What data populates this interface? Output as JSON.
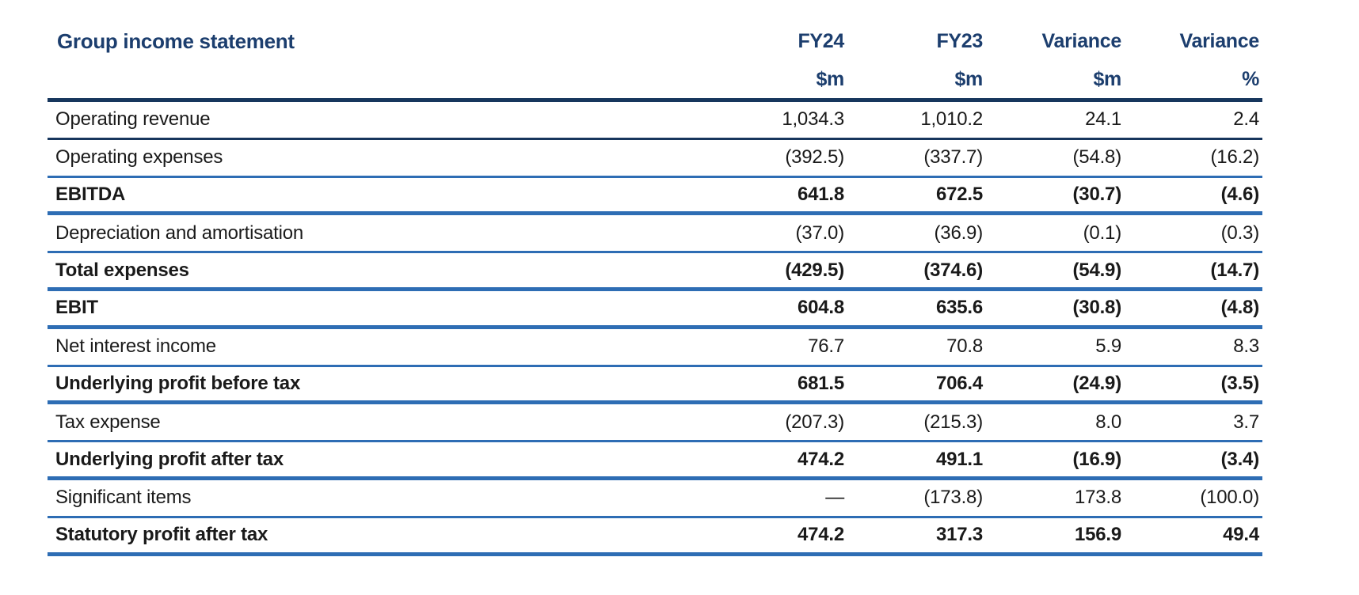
{
  "colors": {
    "navy_rule": "#17365d",
    "blue_rule": "#2e6db4",
    "header_text": "#1c3e6e",
    "body_text": "#1a1a1a"
  },
  "table": {
    "title": "Group income statement",
    "columns": [
      {
        "line1": "FY24",
        "line2": "$m"
      },
      {
        "line1": "FY23",
        "line2": "$m"
      },
      {
        "line1": "Variance",
        "line2": "$m"
      },
      {
        "line1": "Variance",
        "line2": "%"
      }
    ],
    "rows": [
      {
        "label": "Operating revenue",
        "bold": false,
        "values": [
          "1,034.3",
          "1,010.2",
          "24.1",
          "2.4"
        ]
      },
      {
        "label": "Operating expenses",
        "bold": false,
        "values": [
          "(392.5)",
          "(337.7)",
          "(54.8)",
          "(16.2)"
        ]
      },
      {
        "label": "EBITDA",
        "bold": true,
        "values": [
          "641.8",
          "672.5",
          "(30.7)",
          "(4.6)"
        ]
      },
      {
        "label": "Depreciation and amortisation",
        "bold": false,
        "values": [
          "(37.0)",
          "(36.9)",
          "(0.1)",
          "(0.3)"
        ]
      },
      {
        "label": "Total expenses",
        "bold": true,
        "values": [
          "(429.5)",
          "(374.6)",
          "(54.9)",
          "(14.7)"
        ]
      },
      {
        "label": "EBIT",
        "bold": true,
        "values": [
          "604.8",
          "635.6",
          "(30.8)",
          "(4.8)"
        ]
      },
      {
        "label": "Net interest income",
        "bold": false,
        "values": [
          "76.7",
          "70.8",
          "5.9",
          "8.3"
        ]
      },
      {
        "label": "Underlying profit before tax",
        "bold": true,
        "values": [
          "681.5",
          "706.4",
          "(24.9)",
          "(3.5)"
        ]
      },
      {
        "label": "Tax expense",
        "bold": false,
        "values": [
          "(207.3)",
          "(215.3)",
          "8.0",
          "3.7"
        ]
      },
      {
        "label": "Underlying profit after tax",
        "bold": true,
        "values": [
          "474.2",
          "491.1",
          "(16.9)",
          "(3.4)"
        ]
      },
      {
        "label": "Significant items",
        "bold": false,
        "values": [
          "—",
          "(173.8)",
          "173.8",
          "(100.0)"
        ]
      },
      {
        "label": "Statutory profit after tax",
        "bold": true,
        "values": [
          "474.2",
          "317.3",
          "156.9",
          "49.4"
        ]
      }
    ]
  }
}
